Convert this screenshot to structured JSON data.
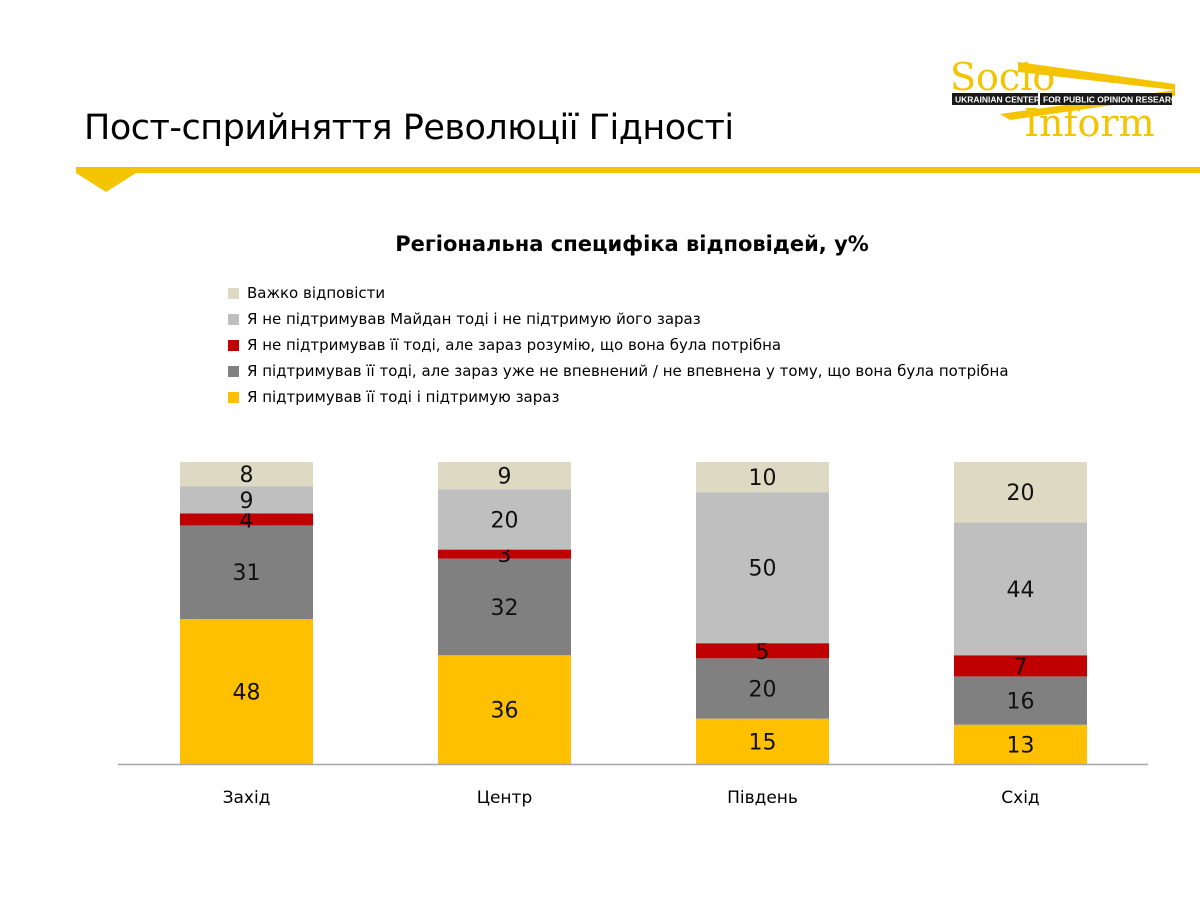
{
  "page": {
    "title": "Пост-сприйняття Революції Гідності"
  },
  "logo": {
    "word1": "Socio",
    "word2": "Inform",
    "tagline_left": "UKRAINIAN CENTER",
    "tagline_right": "FOR PUBLIC OPINION RESEARCH",
    "color": "#f5c400"
  },
  "chart_data": {
    "type": "bar",
    "stacked": true,
    "title": "Регіональна специфіка відповідей, у%",
    "categories": [
      "Захід",
      "Центр",
      "Південь",
      "Схід"
    ],
    "series": [
      {
        "name": "Я підтримував її тоді і підтримую зараз",
        "color": "#ffc000",
        "values": [
          48,
          36,
          15,
          13
        ]
      },
      {
        "name": "Я підтримував її тоді, але зараз уже не впевнений / не впевнена у тому, що вона була потрібна",
        "color": "#808080",
        "values": [
          31,
          32,
          20,
          16
        ]
      },
      {
        "name": "Я не підтримував її тоді, але зараз розумію, що вона була потрібна",
        "color": "#c00000",
        "values": [
          4,
          3,
          5,
          7
        ]
      },
      {
        "name": "Я не підтримував Майдан тоді і не підтримую його зараз",
        "color": "#bfbfbf",
        "values": [
          9,
          20,
          50,
          44
        ]
      },
      {
        "name": "Важко відповісти",
        "color": "#ddd9c3",
        "values": [
          8,
          9,
          10,
          20
        ]
      }
    ],
    "legend_order": [
      4,
      3,
      2,
      1,
      0
    ],
    "legend_position": "top",
    "xlabel": "",
    "ylabel": "",
    "grid": false
  }
}
